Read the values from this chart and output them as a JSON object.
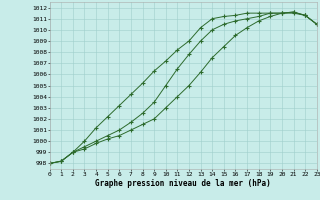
{
  "background_color": "#c8ece9",
  "grid_color": "#9fcfcc",
  "line_color": "#2d6b2d",
  "title": "Graphe pression niveau de la mer (hPa)",
  "xlim": [
    0,
    23
  ],
  "ylim": [
    997.5,
    1012.5
  ],
  "yticks": [
    998,
    999,
    1000,
    1001,
    1002,
    1003,
    1004,
    1005,
    1006,
    1007,
    1008,
    1009,
    1010,
    1011,
    1012
  ],
  "xticks": [
    0,
    1,
    2,
    3,
    4,
    5,
    6,
    7,
    8,
    9,
    10,
    11,
    12,
    13,
    14,
    15,
    16,
    17,
    18,
    19,
    20,
    21,
    22,
    23
  ],
  "series1_x": [
    0,
    1,
    2,
    3,
    4,
    5,
    6,
    7,
    8,
    9,
    10,
    11,
    12,
    13,
    14,
    15,
    16,
    17,
    18,
    19,
    20,
    21,
    22,
    23
  ],
  "series1_y": [
    998.0,
    998.2,
    999.0,
    1000.0,
    1001.2,
    1002.2,
    1003.2,
    1004.2,
    1005.2,
    1006.3,
    1007.2,
    1008.2,
    1009.0,
    1010.2,
    1011.0,
    1011.2,
    1011.3,
    1011.5,
    1011.5,
    1011.5,
    1011.5,
    1011.6,
    1011.3,
    1010.5
  ],
  "series2_x": [
    0,
    1,
    2,
    3,
    4,
    5,
    6,
    7,
    8,
    9,
    10,
    11,
    12,
    13,
    14,
    15,
    16,
    17,
    18,
    19,
    20,
    21,
    22,
    23
  ],
  "series2_y": [
    998.0,
    998.2,
    999.0,
    999.5,
    1000.0,
    1000.5,
    1001.0,
    1001.7,
    1002.5,
    1003.5,
    1005.0,
    1006.5,
    1007.8,
    1009.0,
    1010.0,
    1010.5,
    1010.8,
    1011.0,
    1011.2,
    1011.5,
    1011.5,
    1011.6,
    1011.3,
    1010.5
  ],
  "series3_x": [
    0,
    1,
    2,
    3,
    4,
    5,
    6,
    7,
    8,
    9,
    10,
    11,
    12,
    13,
    14,
    15,
    16,
    17,
    18,
    19,
    20,
    21,
    22,
    23
  ],
  "series3_y": [
    998.0,
    998.2,
    999.0,
    999.3,
    999.8,
    1000.2,
    1000.5,
    1001.0,
    1001.5,
    1002.0,
    1003.0,
    1004.0,
    1005.0,
    1006.2,
    1007.5,
    1008.5,
    1009.5,
    1010.2,
    1010.8,
    1011.2,
    1011.5,
    1011.5,
    1011.3,
    1010.5
  ]
}
